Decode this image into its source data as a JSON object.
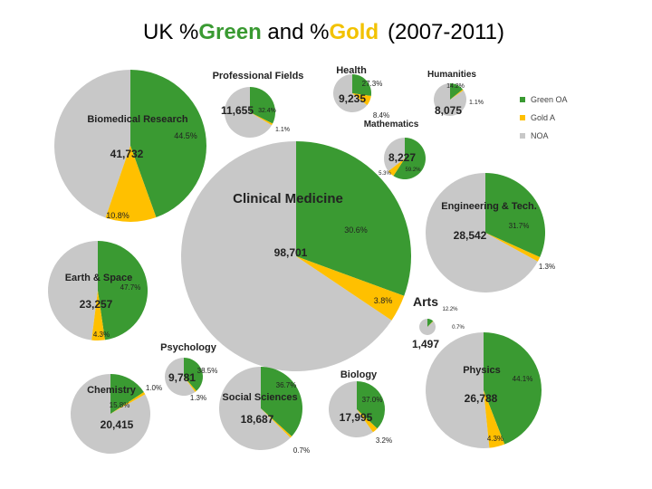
{
  "page": {
    "title": {
      "prefix": "UK %",
      "green": "Green",
      "middle": " and %",
      "gold": "Gold",
      "years": "(2007-2011)"
    }
  },
  "colors": {
    "green": "#3a9a32",
    "gold": "#ffc000",
    "noa": "#c8c8c8"
  },
  "legend": [
    {
      "key": "green",
      "label": "Green OA"
    },
    {
      "key": "gold",
      "label": "Gold A"
    },
    {
      "key": "noa",
      "label": "NOA"
    }
  ],
  "chart_data": {
    "type": "pie",
    "title": "UK %Green and %Gold (2007-2011)",
    "series_names": [
      "Green OA",
      "Gold A",
      "NOA"
    ],
    "pies": [
      {
        "name": "Clinical Medicine",
        "total": "98,701",
        "green": 30.6,
        "gold": 3.8,
        "green_label": "30.6%",
        "gold_label": "3.8%"
      },
      {
        "name": "Biomedical Research",
        "total": "41,732",
        "green": 44.5,
        "gold": 10.8,
        "green_label": "44.5%",
        "gold_label": "10.8%"
      },
      {
        "name": "Engineering & Tech.",
        "total": "28,542",
        "green": 31.7,
        "gold": 1.3,
        "green_label": "31.7%",
        "gold_label": "1.3%"
      },
      {
        "name": "Physics",
        "total": "26,788",
        "green": 44.1,
        "gold": 4.3,
        "green_label": "44.1%",
        "gold_label": "4.3%"
      },
      {
        "name": "Earth & Space",
        "total": "23,257",
        "green": 47.7,
        "gold": 4.3,
        "green_label": "47.7%",
        "gold_label": "4.3%"
      },
      {
        "name": "Chemistry",
        "total": "20,415",
        "green": 15.8,
        "gold": 1.0,
        "green_label": "15.8%",
        "gold_label": "1.0%"
      },
      {
        "name": "Social Sciences",
        "total": "18,687",
        "green": 36.7,
        "gold": 0.7,
        "green_label": "36.7%",
        "gold_label": "0.7%"
      },
      {
        "name": "Biology",
        "total": "17,995",
        "green": 37.0,
        "gold": 3.2,
        "green_label": "37.0%",
        "gold_label": "3.2%"
      },
      {
        "name": "Professional Fields",
        "total": "11,655",
        "green": 32.4,
        "gold": 1.1,
        "green_label": "32.4%",
        "gold_label": "1.1%"
      },
      {
        "name": "Psychology",
        "total": "9,781",
        "green": 38.5,
        "gold": 1.3,
        "green_label": "38.5%",
        "gold_label": "1.3%"
      },
      {
        "name": "Health",
        "total": "9,235",
        "green": 27.3,
        "gold": 8.4,
        "green_label": "27.3%",
        "gold_label": "8.4%"
      },
      {
        "name": "Mathematics",
        "total": "8,227",
        "green": 59.2,
        "gold": 5.3,
        "green_label": "59.2%",
        "gold_label": "5.3%"
      },
      {
        "name": "Humanities",
        "total": "8,075",
        "green": 14.2,
        "gold": 1.1,
        "green_label": "14.2%",
        "gold_label": "1.1%"
      },
      {
        "name": "Arts",
        "total": "1,497",
        "green": 12.2,
        "gold": 0.7,
        "green_label": "12.2%",
        "gold_label": "0.7%"
      }
    ]
  }
}
